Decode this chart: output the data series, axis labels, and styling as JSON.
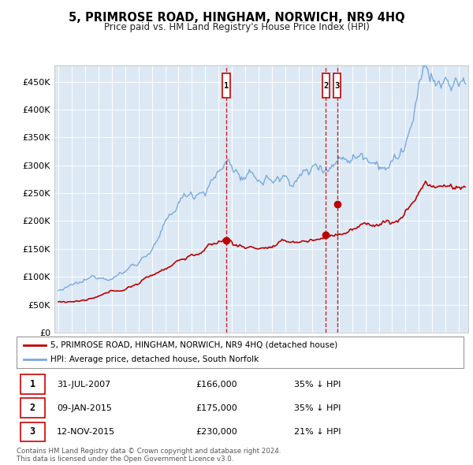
{
  "title": "5, PRIMROSE ROAD, HINGHAM, NORWICH, NR9 4HQ",
  "subtitle": "Price paid vs. HM Land Registry's House Price Index (HPI)",
  "ylabel_ticks": [
    "£0",
    "£50K",
    "£100K",
    "£150K",
    "£200K",
    "£250K",
    "£300K",
    "£350K",
    "£400K",
    "£450K"
  ],
  "ytick_values": [
    0,
    50000,
    100000,
    150000,
    200000,
    250000,
    300000,
    350000,
    400000,
    450000
  ],
  "ylim": [
    0,
    480000
  ],
  "legend_line1": "5, PRIMROSE ROAD, HINGHAM, NORWICH, NR9 4HQ (detached house)",
  "legend_line2": "HPI: Average price, detached house, South Norfolk",
  "red_color": "#bb0000",
  "blue_color": "#7aaadd",
  "background_color": "#dce9f5",
  "sale_markers": [
    {
      "date_num": 2007.58,
      "price": 166000,
      "label": "1"
    },
    {
      "date_num": 2015.03,
      "price": 175000,
      "label": "2"
    },
    {
      "date_num": 2015.87,
      "price": 230000,
      "label": "3"
    }
  ],
  "table_rows": [
    {
      "num": "1",
      "date": "31-JUL-2007",
      "price": "£166,000",
      "hpi": "35% ↓ HPI"
    },
    {
      "num": "2",
      "date": "09-JAN-2015",
      "price": "£175,000",
      "hpi": "35% ↓ HPI"
    },
    {
      "num": "3",
      "date": "12-NOV-2015",
      "price": "£230,000",
      "hpi": "21% ↓ HPI"
    }
  ],
  "footer": "Contains HM Land Registry data © Crown copyright and database right 2024.\nThis data is licensed under the Open Government Licence v3.0."
}
